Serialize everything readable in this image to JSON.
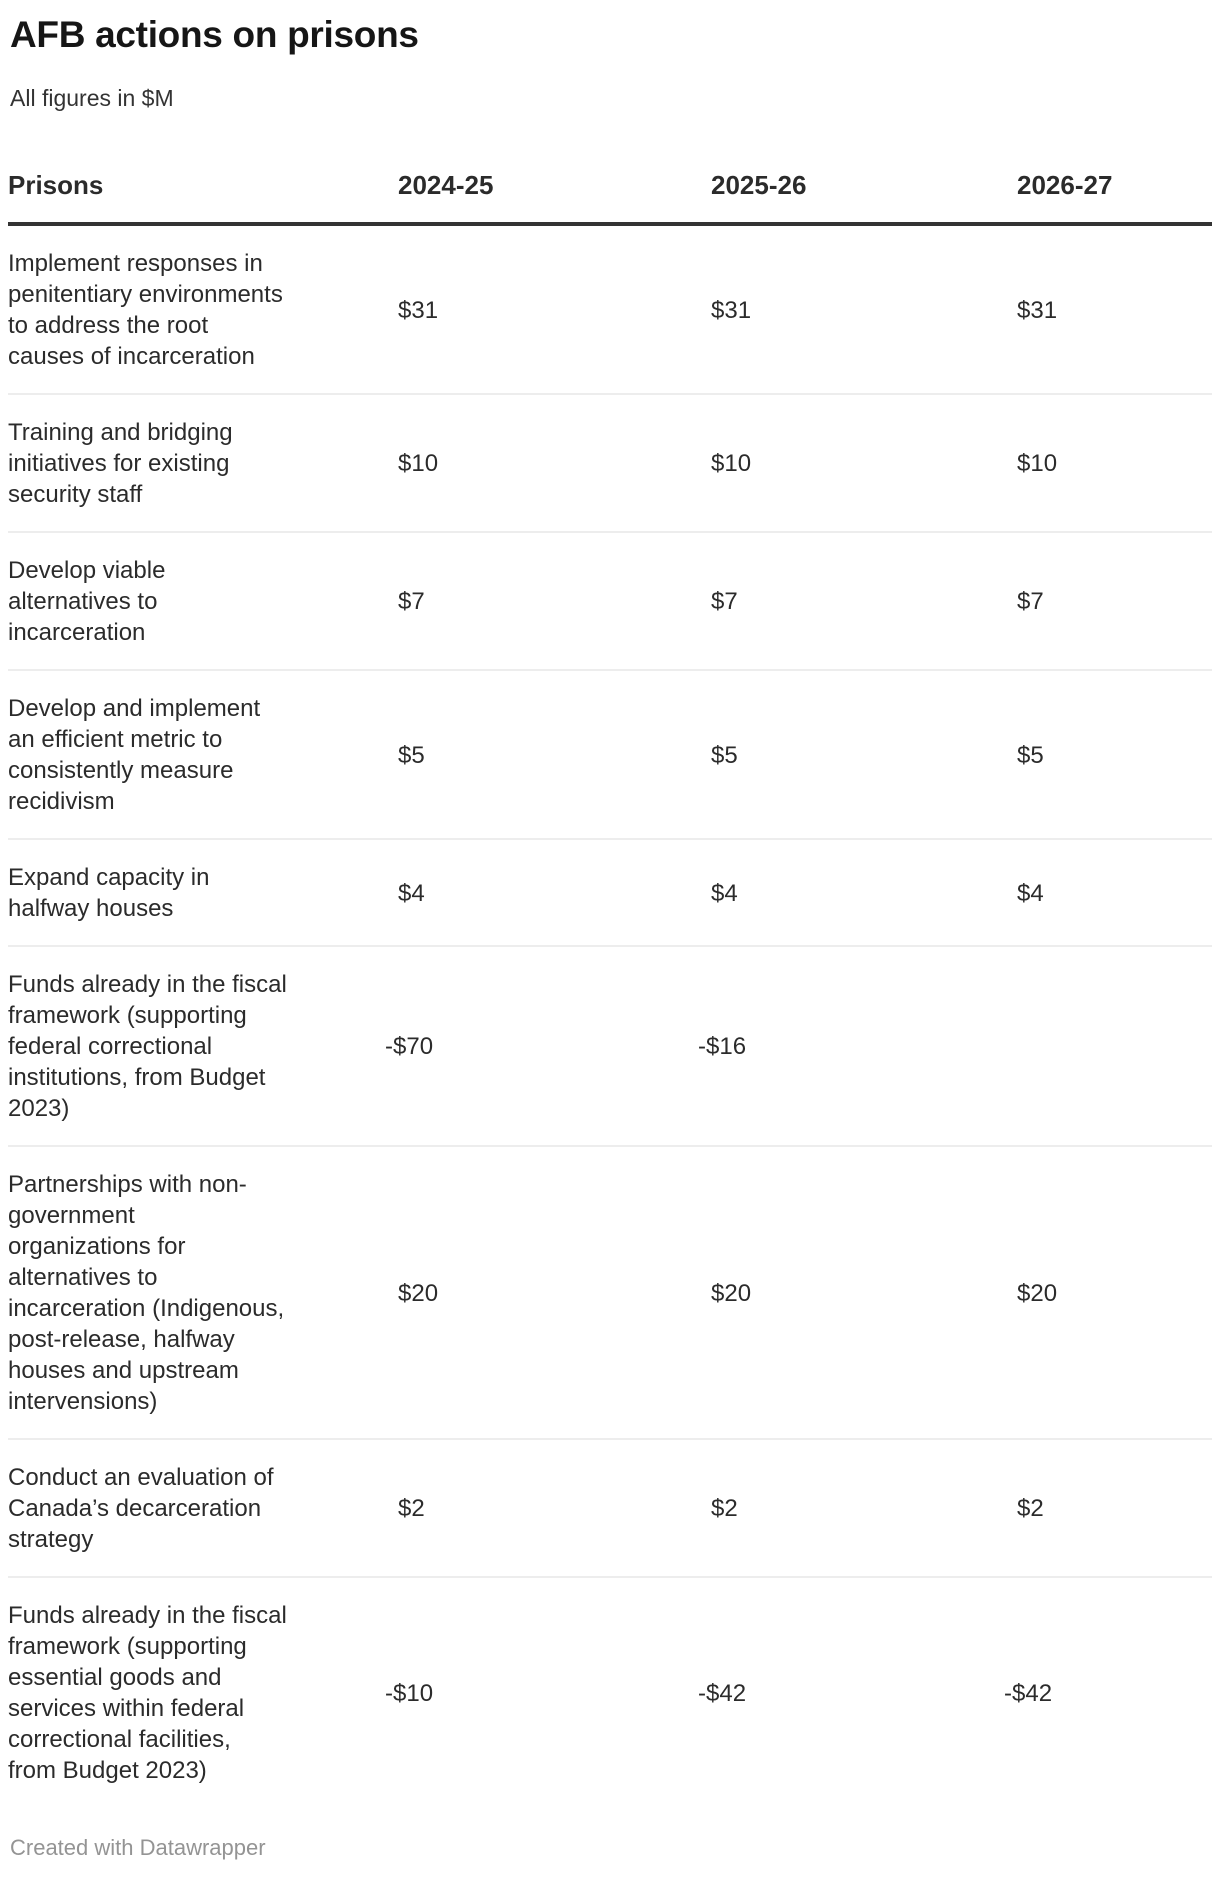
{
  "title": "AFB actions on prisons",
  "subtitle": "All figures in $M",
  "table": {
    "columns": [
      "Prisons",
      "2024-25",
      "2025-26",
      "2026-27"
    ],
    "rows": [
      {
        "label": "Implement responses in\npenitentiary environments\nto address the root\ncauses of incarceration",
        "values": [
          "$31",
          "$31",
          "$31"
        ]
      },
      {
        "label": "Training and bridging\ninitiatives for existing\nsecurity staff",
        "values": [
          "$10",
          "$10",
          "$10"
        ]
      },
      {
        "label": "Develop viable\nalternatives to\nincarceration",
        "values": [
          "$7",
          "$7",
          "$7"
        ]
      },
      {
        "label": "Develop and implement\nan efficient metric to\nconsistently measure\nrecidivism",
        "values": [
          "$5",
          "$5",
          "$5"
        ]
      },
      {
        "label": "Expand capacity in\nhalfway houses",
        "values": [
          "$4",
          "$4",
          "$4"
        ]
      },
      {
        "label": "Funds already in the fiscal\nframework (supporting\nfederal correctional\ninstitutions, from Budget\n2023)",
        "values": [
          "-$70",
          "-$16",
          ""
        ]
      },
      {
        "label": "Partnerships with non-\ngovernment\norganizations for\nalternatives to\nincarceration (Indigenous,\npost-release, halfway\nhouses and upstream\nintervensions)",
        "values": [
          "$20",
          "$20",
          "$20"
        ]
      },
      {
        "label": "Conduct an evaluation of\nCanada’s decarceration\nstrategy",
        "values": [
          "$2",
          "$2",
          "$2"
        ]
      },
      {
        "label": "Funds already in the fiscal\nframework (supporting\nessential goods and\nservices within federal\ncorrectional facilities,\nfrom Budget 2023)",
        "values": [
          "-$10",
          "-$42",
          "-$42"
        ]
      }
    ]
  },
  "footer": {
    "credit": "Created with Datawrapper"
  },
  "colors": {
    "title_text": "#161616",
    "body_text": "#2b2b2b",
    "header_border": "#333333",
    "row_divider": "#ededed",
    "footer_text": "#949494",
    "background": "#ffffff"
  },
  "chart_data": {
    "type": "table",
    "title": "AFB actions on prisons",
    "subtitle": "All figures in $M",
    "unit": "$M",
    "columns": [
      "Prisons",
      "2024-25",
      "2025-26",
      "2026-27"
    ],
    "rows": [
      {
        "label": "Implement responses in penitentiary environments to address the root causes of incarceration",
        "values": [
          31,
          31,
          31
        ]
      },
      {
        "label": "Training and bridging initiatives for existing security staff",
        "values": [
          10,
          10,
          10
        ]
      },
      {
        "label": "Develop viable alternatives to incarceration",
        "values": [
          7,
          7,
          7
        ]
      },
      {
        "label": "Develop and implement an efficient metric to consistently measure recidivism",
        "values": [
          5,
          5,
          5
        ]
      },
      {
        "label": "Expand capacity in halfway houses",
        "values": [
          4,
          4,
          4
        ]
      },
      {
        "label": "Funds already in the fiscal framework (supporting federal correctional institutions, from Budget 2023)",
        "values": [
          -70,
          -16,
          null
        ]
      },
      {
        "label": "Partnerships with non-government organizations for alternatives to incarceration (Indigenous, post-release, halfway houses and upstream intervensions)",
        "values": [
          20,
          20,
          20
        ]
      },
      {
        "label": "Conduct an evaluation of Canada’s decarceration strategy",
        "values": [
          2,
          2,
          2
        ]
      },
      {
        "label": "Funds already in the fiscal framework (supporting essential goods and services within federal correctional facilities, from Budget 2023)",
        "values": [
          -10,
          -42,
          -42
        ]
      }
    ],
    "footer": "Created with Datawrapper"
  }
}
